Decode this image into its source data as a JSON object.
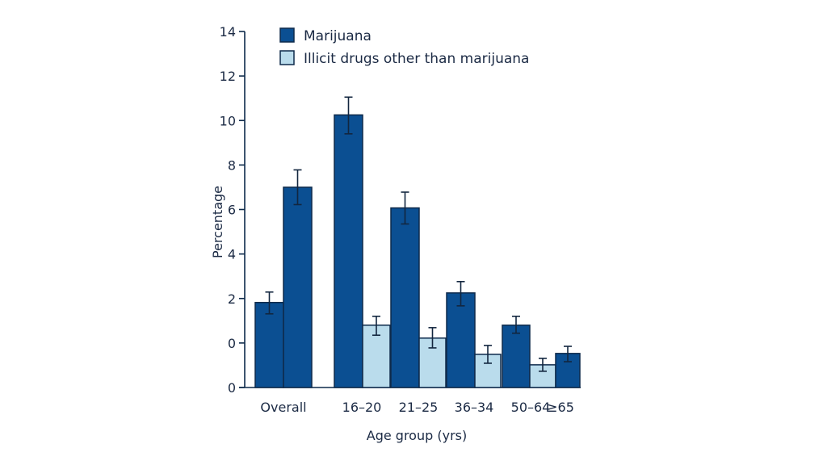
{
  "chart_data": {
    "type": "bar",
    "title": "",
    "xlabel": "Age group (yrs)",
    "ylabel": "Percentage",
    "y_tick_labels": [
      "0",
      "0",
      "2",
      "4",
      "6",
      "8",
      "10",
      "12",
      "14"
    ],
    "ylim": [
      -2,
      14
    ],
    "grid": false,
    "legend_position": "top-left",
    "colors": {
      "Marijuana": "#0b4f92",
      "Illicit drugs other than marijuana": "#badcec",
      "outline": "#0e2a4b",
      "text": "#1b2a44"
    },
    "groups": [
      {
        "label": "Overall",
        "bars": [
          {
            "series": "Marijuana",
            "value": 1.82,
            "err_low": 1.31,
            "err_high": 2.29
          },
          {
            "series": "Marijuana",
            "value": 7.0,
            "err_low": 6.22,
            "err_high": 7.78
          }
        ]
      },
      {
        "label": "16–20",
        "bars": [
          {
            "series": "Marijuana",
            "value": 10.25,
            "err_low": 9.4,
            "err_high": 11.05
          },
          {
            "series": "Illicit drugs other than marijuana",
            "value": 0.8,
            "err_low": 0.35,
            "err_high": 1.2
          }
        ]
      },
      {
        "label": "21–25",
        "bars": [
          {
            "series": "Marijuana",
            "value": 6.07,
            "err_low": 5.35,
            "err_high": 6.78
          },
          {
            "series": "Illicit drugs other than marijuana",
            "value": 0.22,
            "err_low": -0.22,
            "err_high": 0.69
          }
        ]
      },
      {
        "label": "36–34",
        "bars": [
          {
            "series": "Marijuana",
            "value": 2.25,
            "err_low": 1.67,
            "err_high": 2.76
          },
          {
            "series": "Illicit drugs other than marijuana",
            "value": -0.51,
            "err_low": -0.91,
            "err_high": -0.11
          }
        ]
      },
      {
        "label": "50–64",
        "bars": [
          {
            "series": "Marijuana",
            "value": 0.8,
            "err_low": 0.44,
            "err_high": 1.2
          },
          {
            "series": "Illicit drugs other than marijuana",
            "value": -0.98,
            "err_low": -1.27,
            "err_high": -0.69
          }
        ]
      },
      {
        "label": "≥65",
        "bars": [
          {
            "series": "Marijuana",
            "value": -0.47,
            "err_low": -0.84,
            "err_high": -0.15
          }
        ]
      }
    ],
    "legend": [
      "Marijuana",
      "Illicit drugs other than marijuana"
    ]
  }
}
